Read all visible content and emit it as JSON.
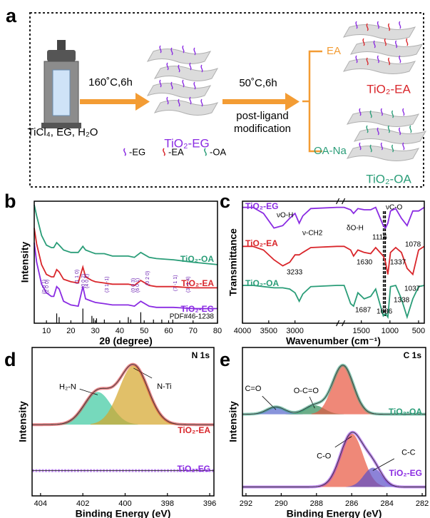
{
  "panel_labels": [
    "a",
    "b",
    "c",
    "d",
    "e"
  ],
  "scheme": {
    "step1": "160˚C,6h",
    "precursors": "TiCl₄, EG, H₂O",
    "product1": "TiO₂-EG",
    "step2": "50˚C,6h",
    "step2_note": [
      "post-ligand",
      "modification"
    ],
    "branch_ea": "EA",
    "branch_oa": "OA-Na",
    "product_ea": "TiO₂-EA",
    "product_oa": "TiO₂-OA",
    "legend": [
      "-EG",
      "-EA",
      "-OA"
    ]
  },
  "chart_data": [
    {
      "type": "line",
      "xlabel": "2θ (degree)",
      "ylabel": "Intensity",
      "xlim": [
        5,
        80
      ],
      "xticks": [
        10,
        20,
        30,
        40,
        50,
        60,
        70,
        80
      ],
      "ylim": [
        0,
        100
      ],
      "series": [
        {
          "name": "TiO₂-OA",
          "color": "#2a9d78",
          "x": [
            5,
            6,
            8,
            10,
            12,
            13,
            14.2,
            15.2,
            17,
            20,
            23,
            24.9,
            26,
            28.6,
            30,
            33.7,
            37,
            43.5,
            46,
            48.6,
            52,
            55,
            62,
            70,
            80
          ],
          "values": [
            97,
            88,
            72,
            64,
            62,
            62,
            66,
            64,
            60,
            58,
            58,
            63,
            60,
            58,
            57,
            57,
            55,
            55,
            54,
            58,
            54,
            53,
            52,
            50,
            48
          ]
        },
        {
          "name": "TiO₂-EA",
          "color": "#d9262b",
          "x": [
            5,
            6,
            8,
            10,
            12,
            13,
            14.2,
            15.2,
            17,
            20,
            23,
            24.9,
            26,
            28.6,
            30,
            33.7,
            37,
            43.5,
            46,
            48.6,
            52,
            55,
            62,
            70,
            80
          ],
          "values": [
            78,
            65,
            48,
            40,
            38,
            38,
            44,
            42,
            36,
            34,
            33,
            46,
            38,
            35,
            34,
            33,
            32,
            32,
            31,
            35,
            31,
            30,
            30,
            29,
            29
          ]
        },
        {
          "name": "TiO₂-EG",
          "color": "#8a2be2",
          "x": [
            5,
            6,
            8,
            10,
            12,
            13,
            14.2,
            15.2,
            17,
            20,
            23,
            24.9,
            26,
            28.6,
            30,
            33.7,
            37,
            43.5,
            46,
            48.6,
            52,
            55,
            62,
            70,
            80
          ],
          "values": [
            66,
            50,
            32,
            25,
            22,
            22,
            30,
            28,
            18,
            15,
            14,
            30,
            20,
            18,
            17,
            16,
            15,
            15,
            14,
            18,
            14,
            13,
            13,
            12,
            12
          ]
        }
      ],
      "reference": {
        "name": "PDF#46-1238",
        "color": "#000000",
        "x": [
          14.2,
          15.2,
          24.9,
          28.6,
          29.3,
          30.5,
          33.7,
          43.5,
          44.5,
          48.6,
          53.8,
          57.2,
          61.7
        ],
        "values": [
          8,
          5,
          12,
          6,
          4,
          4,
          3,
          5,
          3,
          9,
          3,
          3,
          3
        ]
      },
      "annotations": [
        "(0 0 1)",
        "(2 0 0)",
        "(1 1 0)",
        "(0 0 2)",
        "(4 0 2)",
        "(3 1 -1)",
        "(0 0 3)",
        "(6 0 1)",
        "(0 2 0)",
        "(7 -1 1)",
        "(3 -1 4)"
      ]
    },
    {
      "type": "line",
      "xlabel": "Wavenumber (cm⁻¹)",
      "ylabel": "Transmittance",
      "xlim": [
        4000,
        400
      ],
      "x_break": [
        2200,
        1800
      ],
      "xticks": [
        4000,
        3500,
        3000,
        1500,
        1000,
        500
      ],
      "ylim": [
        0,
        100
      ],
      "series": [
        {
          "name": "TiO₂-EG",
          "color": "#8a2be2",
          "x": [
            4000,
            3800,
            3600,
            3400,
            3233,
            3100,
            3000,
            2920,
            2850,
            2700,
            2200,
            1800,
            1687,
            1636,
            1560,
            1450,
            1337,
            1250,
            1116,
            1078,
            1037,
            990,
            900,
            800,
            700,
            600,
            500,
            400
          ],
          "values": [
            95,
            95,
            90,
            78,
            80,
            86,
            90,
            82,
            88,
            94,
            95,
            95,
            93,
            90,
            94,
            93,
            93,
            95,
            80,
            78,
            82,
            92,
            94,
            86,
            80,
            92,
            92,
            95
          ]
        },
        {
          "name": "TiO₂-EA",
          "color": "#d9262b",
          "x": [
            4000,
            3800,
            3600,
            3400,
            3233,
            3100,
            3000,
            2920,
            2850,
            2700,
            2200,
            1800,
            1687,
            1636,
            1560,
            1450,
            1337,
            1250,
            1116,
            1078,
            1037,
            990,
            900,
            800,
            700,
            600,
            500,
            400
          ],
          "values": [
            63,
            63,
            60,
            52,
            47,
            50,
            56,
            56,
            58,
            62,
            63,
            63,
            60,
            55,
            60,
            58,
            57,
            62,
            55,
            50,
            40,
            58,
            62,
            58,
            45,
            40,
            60,
            63
          ]
        },
        {
          "name": "TiO₂-OA",
          "color": "#2a9d78",
          "x": [
            4000,
            3800,
            3600,
            3400,
            3233,
            3100,
            3000,
            2920,
            2850,
            2700,
            2200,
            1800,
            1687,
            1636,
            1560,
            1450,
            1337,
            1250,
            1116,
            1078,
            1037,
            990,
            900,
            800,
            700,
            600,
            500,
            400
          ],
          "values": [
            31,
            31,
            30,
            29,
            29,
            28,
            25,
            18,
            24,
            30,
            31,
            31,
            16,
            14,
            25,
            20,
            22,
            28,
            6,
            8,
            5,
            30,
            31,
            20,
            5,
            20,
            30,
            31
          ]
        }
      ],
      "vlines": [
        1116,
        1095,
        1078
      ],
      "annotations": [
        "νO-H",
        "ν-CH2",
        "δO-H",
        "νC-O",
        "1116",
        "1078",
        "3233",
        "1630",
        "1337",
        "1037",
        "1687",
        "1636",
        "1338"
      ]
    },
    {
      "type": "xps",
      "title": "N 1s",
      "xlabel": "Binding Energy (eV)",
      "ylabel": "Intensity",
      "xlim": [
        404.4,
        395.8
      ],
      "xticks": [
        404,
        402,
        400,
        398,
        396
      ],
      "ylim": [
        0,
        100
      ],
      "series": [
        {
          "name": "TiO₂-EA",
          "color": "#d9262b",
          "baseline": 48,
          "peaks": [
            {
              "label": "H₂-N",
              "center": 401.3,
              "height": 22,
              "fwhm": 1.5,
              "color": "#3cc9a0"
            },
            {
              "label": "N-Ti",
              "center": 399.6,
              "height": 40,
              "fwhm": 1.6,
              "color": "#d4a52a"
            }
          ]
        },
        {
          "name": "TiO₂-EG",
          "color": "#8a2be2",
          "baseline": 17,
          "peaks": []
        }
      ]
    },
    {
      "type": "xps",
      "title": "C 1s",
      "xlabel": "Binding Energy (eV)",
      "ylabel": "Intensity",
      "xlim": [
        292.2,
        281.8
      ],
      "xticks": [
        292,
        290,
        288,
        286,
        284,
        282
      ],
      "ylim": [
        0,
        100
      ],
      "series": [
        {
          "name": "TiO₂-OA",
          "color": "#2a9d78",
          "baseline": 55,
          "peaks": [
            {
              "label": "C=O",
              "center": 290.3,
              "height": 5,
              "fwhm": 1.2,
              "color": "#5566cc"
            },
            {
              "label": "O-C=O",
              "center": 288.1,
              "height": 6,
              "fwhm": 1.3,
              "color": "#2e8b57"
            },
            {
              "center": 286.5,
              "height": 33,
              "fwhm": 1.4,
              "color": "#e8553e"
            }
          ]
        },
        {
          "name": "TiO₂-EG",
          "color": "#8a2be2",
          "baseline": 6,
          "peaks": [
            {
              "label": "C-O",
              "center": 286.0,
              "height": 36,
              "fwhm": 1.5,
              "color": "#e8553e"
            },
            {
              "label": "C-C",
              "center": 284.8,
              "height": 13,
              "fwhm": 1.2,
              "color": "#5b4fc7"
            }
          ]
        }
      ]
    }
  ]
}
